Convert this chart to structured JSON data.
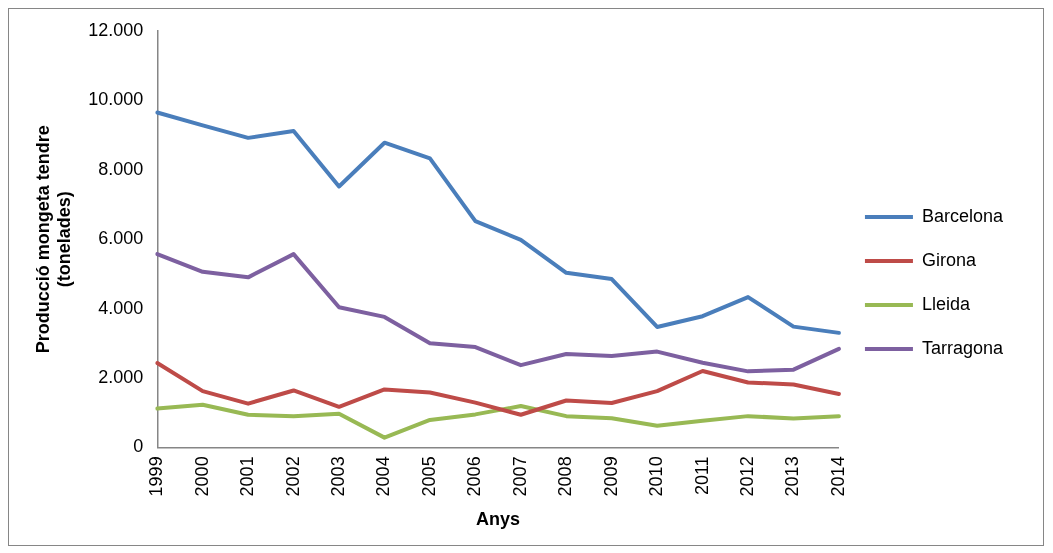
{
  "chart_data": {
    "type": "line",
    "xlabel": "Anys",
    "ylabel": "Producció mongeta tendre (tonelades)",
    "categories": [
      "1999",
      "2000",
      "2001",
      "2002",
      "2003",
      "2004",
      "2005",
      "2006",
      "2007",
      "2008",
      "2009",
      "2010",
      "2011",
      "2012",
      "2013",
      "2014"
    ],
    "series": [
      {
        "name": "Barcelona",
        "color": "#4a7ebb",
        "values": [
          9650,
          9280,
          8920,
          9120,
          7520,
          8780,
          8330,
          6520,
          5980,
          5030,
          4850,
          3470,
          3780,
          4330,
          3480,
          3300
        ]
      },
      {
        "name": "Girona",
        "color": "#be4b48",
        "values": [
          2430,
          1620,
          1260,
          1640,
          1170,
          1670,
          1580,
          1290,
          940,
          1350,
          1280,
          1620,
          2200,
          1870,
          1810,
          1540
        ]
      },
      {
        "name": "Lleida",
        "color": "#98b954",
        "values": [
          1120,
          1230,
          940,
          900,
          970,
          280,
          790,
          950,
          1190,
          900,
          840,
          620,
          770,
          900,
          830,
          900
        ]
      },
      {
        "name": "Tarragona",
        "color": "#7d60a0",
        "values": [
          5570,
          5060,
          4900,
          5570,
          4040,
          3760,
          3000,
          2890,
          2370,
          2690,
          2630,
          2760,
          2440,
          2190,
          2240,
          2840
        ]
      }
    ],
    "ylim": [
      0,
      12000
    ],
    "yticks": [
      0,
      {
        "value": 2000,
        "label": "2.000"
      },
      {
        "value": 4000,
        "label": "4.000"
      },
      {
        "value": 6000,
        "label": "6.000"
      },
      {
        "value": 8000,
        "label": "8.000"
      },
      {
        "value": 10000,
        "label": "10.000"
      },
      {
        "value": 12000,
        "label": "12.000"
      }
    ],
    "grid": false,
    "legend": "right",
    "marker": "none",
    "line_style": "solid"
  }
}
